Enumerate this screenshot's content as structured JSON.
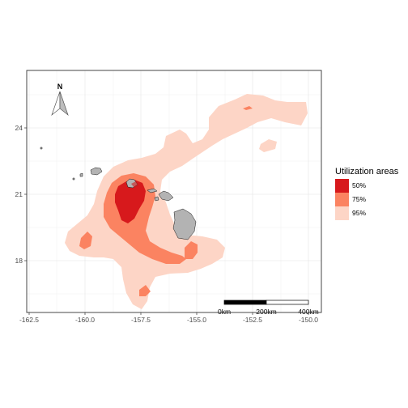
{
  "map": {
    "x_ticks": [
      "-162.5",
      "-160.0",
      "-157.5",
      "-155.0",
      "-152.5",
      "-150.0"
    ],
    "y_ticks": [
      "24",
      "21",
      "18"
    ]
  },
  "legend": {
    "title": "Utilization areas",
    "items": [
      {
        "label": "50%",
        "color": "#d7191c"
      },
      {
        "label": "75%",
        "color": "#fb8361"
      },
      {
        "label": "95%",
        "color": "#fdd5c6"
      }
    ]
  },
  "scale_bar": {
    "labels": [
      "0km",
      "200km",
      "400km"
    ]
  },
  "north_arrow": {
    "label": "N"
  },
  "colors": {
    "land": "#b3b3b3",
    "grid": "#ebebeb",
    "panel_border": "#333333"
  }
}
